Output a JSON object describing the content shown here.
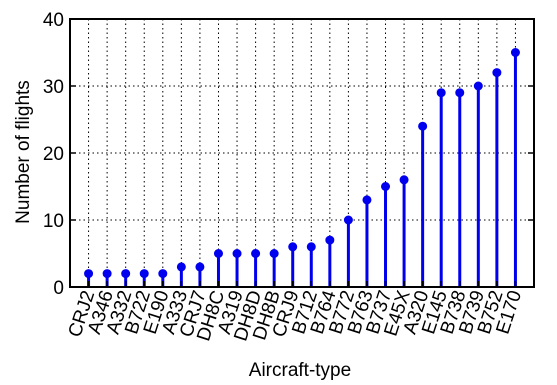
{
  "chart_data": {
    "type": "stem",
    "title": "",
    "xlabel": "Aircraft-type",
    "ylabel": "Number of flights",
    "ylim": [
      0,
      40
    ],
    "yticks": [
      0,
      10,
      20,
      30,
      40
    ],
    "grid": true,
    "categories": [
      "CRJ2",
      "A346",
      "A332",
      "B722",
      "E190",
      "A333",
      "CRJ7",
      "DH8C",
      "A319",
      "DH8D",
      "DH8B",
      "CRJ9",
      "B712",
      "B764",
      "B772",
      "B763",
      "B737",
      "E45X",
      "A320",
      "E145",
      "B738",
      "B739",
      "B752",
      "E170"
    ],
    "values": [
      2,
      2,
      2,
      2,
      2,
      3,
      3,
      5,
      5,
      5,
      5,
      6,
      6,
      7,
      10,
      13,
      15,
      16,
      24,
      29,
      29,
      30,
      32,
      35
    ],
    "color": "#0000ee"
  }
}
